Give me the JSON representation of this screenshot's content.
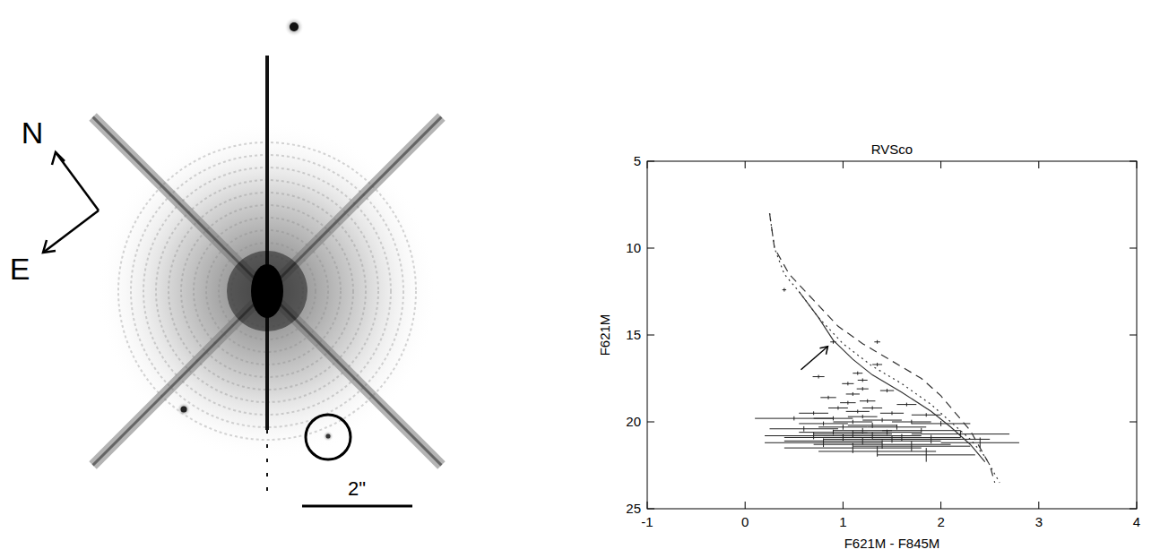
{
  "image_panel": {
    "compass": {
      "north": "N",
      "east": "E"
    },
    "scale_bar_label": "2\""
  },
  "chart_data": {
    "type": "scatter",
    "title": "RVSco",
    "x_label": "F621M - F845M",
    "y_label": "F621M",
    "xlim": [
      -1,
      4
    ],
    "ylim": [
      25,
      5
    ],
    "xticks": [
      -1,
      0,
      1,
      2,
      3,
      4
    ],
    "yticks": [
      5,
      10,
      15,
      20,
      25
    ],
    "arrow_to": {
      "x": 0.9,
      "y": 15.4
    },
    "series": [
      {
        "type": "scatter",
        "marker": "errorbar",
        "color": "#222222",
        "x": [
          0.4,
          0.9,
          1.35,
          1.35,
          1.15,
          1.2,
          0.75,
          1.05,
          1.2,
          1.1,
          0.85,
          1.45,
          1.25,
          1.05,
          1.65,
          1.3,
          0.95,
          1.15,
          0.7,
          1.5,
          1.85,
          1.2,
          0.9,
          0.5,
          1.4,
          1.1,
          1.7,
          0.8,
          1.3,
          1.0,
          2.0,
          1.55,
          0.6,
          1.2,
          0.9,
          1.45,
          1.8,
          1.1,
          0.7,
          1.3,
          2.2,
          1.0,
          1.6,
          1.5,
          1.2,
          1.9,
          0.8,
          1.4,
          1.7,
          1.1,
          1.85,
          1.35,
          2.4
        ],
        "values": [
          12.4,
          15.4,
          15.4,
          16.7,
          17.2,
          17.6,
          17.4,
          17.8,
          18.1,
          18.4,
          18.6,
          18.2,
          18.8,
          18.9,
          19.0,
          19.2,
          19.2,
          19.4,
          19.5,
          19.5,
          19.6,
          19.7,
          19.8,
          19.8,
          19.9,
          20.0,
          20.0,
          20.1,
          20.2,
          20.3,
          20.1,
          20.3,
          20.4,
          20.5,
          20.6,
          20.6,
          20.5,
          20.7,
          20.8,
          20.8,
          20.7,
          20.9,
          20.9,
          21.0,
          21.1,
          21.0,
          21.2,
          21.3,
          21.4,
          21.5,
          21.9,
          21.7,
          21.2
        ],
        "x_error": [
          0.02,
          0.03,
          0.03,
          0.05,
          0.05,
          0.05,
          0.06,
          0.06,
          0.06,
          0.07,
          0.08,
          0.07,
          0.08,
          0.08,
          0.1,
          0.1,
          0.1,
          0.12,
          0.15,
          0.12,
          0.15,
          0.15,
          0.2,
          0.4,
          0.2,
          0.2,
          0.2,
          0.25,
          0.25,
          0.25,
          0.3,
          0.3,
          0.35,
          0.3,
          0.35,
          0.35,
          0.4,
          0.4,
          0.5,
          0.5,
          0.5,
          0.6,
          0.6,
          0.7,
          0.8,
          0.6,
          0.6,
          0.7,
          0.6,
          0.7,
          0.5,
          0.6,
          0.4
        ],
        "y_error": [
          0.05,
          0.05,
          0.08,
          0.08,
          0.08,
          0.1,
          0.1,
          0.1,
          0.1,
          0.1,
          0.1,
          0.1,
          0.1,
          0.1,
          0.1,
          0.1,
          0.1,
          0.1,
          0.1,
          0.1,
          0.1,
          0.1,
          0.12,
          0.12,
          0.12,
          0.12,
          0.12,
          0.12,
          0.15,
          0.15,
          0.15,
          0.15,
          0.15,
          0.15,
          0.15,
          0.15,
          0.15,
          0.2,
          0.2,
          0.2,
          0.2,
          0.2,
          0.2,
          0.2,
          0.2,
          0.25,
          0.25,
          0.25,
          0.3,
          0.3,
          0.4,
          0.3,
          0.3
        ]
      },
      {
        "type": "line",
        "line_style": "dashed",
        "color": "#333333",
        "x": [
          0.25,
          0.3,
          0.45,
          0.7,
          0.95,
          1.2,
          1.5,
          1.8,
          2.0,
          2.15,
          2.3,
          2.4,
          2.5,
          2.55
        ],
        "values": [
          8,
          10,
          11.5,
          13,
          14.5,
          15.5,
          16.5,
          17.5,
          18.5,
          19.5,
          20.5,
          21.5,
          22.5,
          23.5
        ]
      },
      {
        "type": "line",
        "line_style": "dotted",
        "color": "#333333",
        "x": [
          0.25,
          0.3,
          0.4,
          0.55,
          0.75,
          1.0,
          1.3,
          1.6,
          1.9,
          2.1,
          2.3,
          2.45,
          2.55,
          2.6
        ],
        "values": [
          8,
          10,
          11.5,
          12.5,
          14,
          15.5,
          16.8,
          17.8,
          19,
          20,
          21,
          22,
          23,
          23.5
        ]
      },
      {
        "type": "line",
        "line_style": "solid",
        "color": "#333333",
        "x": [
          0.55,
          0.75,
          0.9,
          1.1,
          1.3,
          1.6,
          1.9,
          2.1,
          2.3,
          2.45
        ],
        "values": [
          12.5,
          14,
          15.3,
          16.4,
          17.3,
          18.3,
          19.4,
          20.3,
          21.3,
          22.3
        ]
      }
    ]
  }
}
